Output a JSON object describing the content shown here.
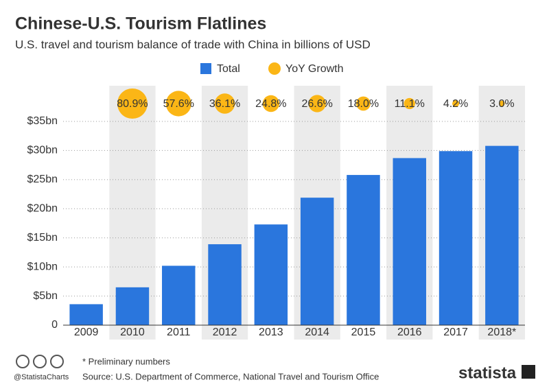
{
  "chart_data": {
    "type": "bar",
    "title": "Chinese-U.S. Tourism Flatlines",
    "subtitle": "U.S. travel and tourism balance of trade with China in billions of USD",
    "categories": [
      "2009",
      "2010",
      "2011",
      "2012",
      "2013",
      "2014",
      "2015",
      "2016",
      "2017",
      "2018*"
    ],
    "series": [
      {
        "name": "Total",
        "color": "#2a76dd",
        "values": [
          3.6,
          6.5,
          10.2,
          13.9,
          17.3,
          21.9,
          25.8,
          28.7,
          29.9,
          30.8
        ]
      },
      {
        "name": "YoY Growth",
        "color": "#fbb616",
        "type": "bubble",
        "values": [
          null,
          80.9,
          57.6,
          36.1,
          24.8,
          26.6,
          18.0,
          11.1,
          4.2,
          3.0
        ],
        "value_labels": [
          null,
          "80.9%",
          "57.6%",
          "36.1%",
          "24.8%",
          "26.6%",
          "18.0%",
          "11.1%",
          "4.2%",
          "3.0%"
        ]
      }
    ],
    "ylim": [
      0,
      35
    ],
    "yticks": [
      {
        "value": 0,
        "label": "0"
      },
      {
        "value": 5,
        "label": "$5bn"
      },
      {
        "value": 10,
        "label": "$10bn"
      },
      {
        "value": 15,
        "label": "$15bn"
      },
      {
        "value": 20,
        "label": "$20bn"
      },
      {
        "value": 25,
        "label": "$25bn"
      },
      {
        "value": 30,
        "label": "$30bn"
      },
      {
        "value": 35,
        "label": "$35bn"
      }
    ],
    "grid": true,
    "legend": "top"
  },
  "footer": {
    "note": "* Preliminary numbers",
    "source": "Source: U.S. Department of Commerce, National Travel and Tourism Office",
    "handle": "@StatistaCharts",
    "brand": "statista"
  }
}
